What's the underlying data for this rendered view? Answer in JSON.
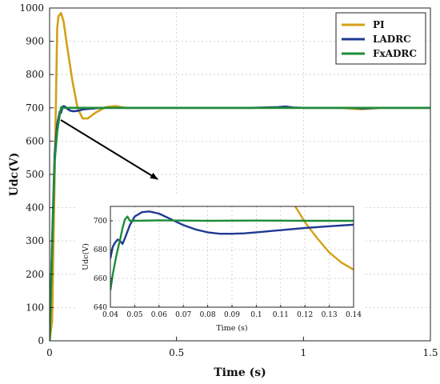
{
  "chart_data": [
    {
      "type": "line",
      "title": "",
      "xlabel": "Time (s)",
      "ylabel": "Udc(V)",
      "xlim": [
        0,
        1.5
      ],
      "ylim": [
        0,
        1000
      ],
      "xticks": [
        0,
        0.5,
        1,
        1.5
      ],
      "xtick_labels": [
        "0",
        "0.5",
        "1",
        "1.5"
      ],
      "yticks": [
        0,
        100,
        200,
        300,
        400,
        500,
        600,
        700,
        800,
        900,
        1000
      ],
      "ytick_labels": [
        "0",
        "100",
        "200",
        "300",
        "400",
        "500",
        "600",
        "700",
        "800",
        "900",
        "1000"
      ],
      "grid": true,
      "legend_position": "top-right",
      "series": [
        {
          "name": "PI",
          "color": "#D4A017",
          "x": [
            0,
            0.01,
            0.02,
            0.03,
            0.035,
            0.045,
            0.055,
            0.07,
            0.09,
            0.11,
            0.13,
            0.15,
            0.18,
            0.22,
            0.26,
            0.3,
            0.4,
            0.6,
            0.8,
            1.0,
            1.1,
            1.15,
            1.2,
            1.23,
            1.3,
            1.4,
            1.5
          ],
          "y": [
            0,
            60,
            500,
            940,
            975,
            985,
            960,
            880,
            780,
            700,
            668,
            668,
            685,
            702,
            705,
            700,
            700,
            700,
            700,
            700,
            700,
            700,
            697,
            696,
            700,
            700,
            700
          ]
        },
        {
          "name": "LADRC",
          "color": "#1F3A93",
          "x": [
            0,
            0.01,
            0.02,
            0.03,
            0.04,
            0.045,
            0.05,
            0.055,
            0.06,
            0.07,
            0.08,
            0.09,
            0.1,
            0.11,
            0.12,
            0.13,
            0.14,
            0.2,
            0.4,
            0.6,
            0.8,
            0.9,
            0.93,
            0.96,
            1.0,
            1.2,
            1.23,
            1.3,
            1.5
          ],
          "y": [
            0,
            300,
            560,
            650,
            688,
            685,
            700,
            705,
            704,
            697,
            692,
            690,
            690,
            691,
            693,
            695,
            696,
            700,
            700,
            700,
            700,
            702,
            704,
            701,
            700,
            700,
            698,
            700,
            700
          ]
        },
        {
          "name": "FxADRC",
          "color": "#1E8C3A",
          "x": [
            0,
            0.01,
            0.02,
            0.03,
            0.04,
            0.045,
            0.047,
            0.05,
            0.06,
            0.1,
            0.14,
            0.3,
            0.5,
            0.7,
            0.9,
            1.0,
            1.2,
            1.4,
            1.5
          ],
          "y": [
            0,
            280,
            540,
            630,
            680,
            700,
            703,
            700,
            700,
            700,
            700,
            700,
            700,
            700,
            700,
            700,
            700,
            700,
            700
          ]
        }
      ]
    },
    {
      "type": "line",
      "title": "",
      "xlabel": "Time (s)",
      "ylabel": "Udc(V)",
      "xlim": [
        0.04,
        0.14
      ],
      "ylim": [
        640,
        710
      ],
      "xticks": [
        0.04,
        0.05,
        0.06,
        0.07,
        0.08,
        0.09,
        0.1,
        0.11,
        0.12,
        0.13,
        0.14
      ],
      "xtick_labels": [
        "0.04",
        "0.05",
        "0.06",
        "0.07",
        "0.08",
        "0.09",
        "0.1",
        "0.11",
        "0.12",
        "0.13",
        "0.14"
      ],
      "yticks": [
        640,
        660,
        680,
        700
      ],
      "ytick_labels": [
        "640",
        "660",
        "680",
        "700"
      ],
      "grid": true,
      "series": [
        {
          "name": "PI",
          "color": "#D4A017",
          "x": [
            0.116,
            0.12,
            0.125,
            0.13,
            0.135,
            0.14
          ],
          "y": [
            710,
            699,
            688,
            678,
            671,
            666
          ]
        },
        {
          "name": "LADRC",
          "color": "#1F3A93",
          "x": [
            0.04,
            0.041,
            0.042,
            0.043,
            0.044,
            0.045,
            0.046,
            0.048,
            0.05,
            0.053,
            0.056,
            0.06,
            0.065,
            0.07,
            0.075,
            0.08,
            0.085,
            0.09,
            0.095,
            0.1,
            0.11,
            0.12,
            0.13,
            0.14
          ],
          "y": [
            674,
            682,
            685,
            687,
            686,
            684,
            688,
            697,
            703,
            706,
            706.5,
            705,
            701,
            697,
            694,
            692,
            691,
            691,
            691.3,
            692,
            693.5,
            695,
            696.2,
            697.3
          ]
        },
        {
          "name": "FxADRC",
          "color": "#1E8C3A",
          "x": [
            0.04,
            0.041,
            0.042,
            0.043,
            0.044,
            0.045,
            0.046,
            0.047,
            0.048,
            0.05,
            0.06,
            0.08,
            0.1,
            0.12,
            0.14
          ],
          "y": [
            652,
            663,
            672,
            680,
            687,
            695,
            701,
            703,
            700,
            700,
            700.3,
            700,
            700.2,
            700,
            700
          ]
        }
      ]
    }
  ]
}
